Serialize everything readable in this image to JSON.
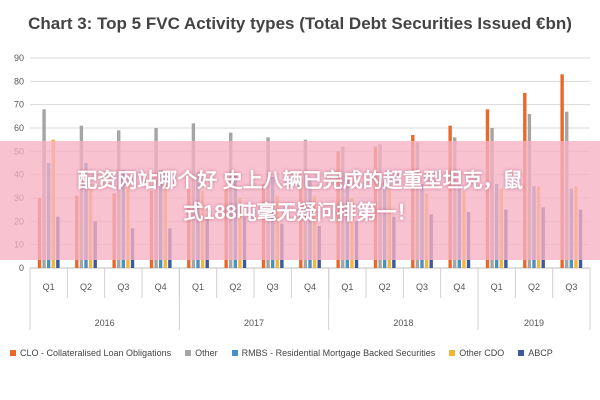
{
  "chart_data": {
    "type": "bar",
    "title": "Chart 3: Top 5 FVC Activity types (Total Debt Securities Issued €bn)",
    "xlabel": "",
    "ylabel": "",
    "ylim": [
      0,
      90
    ],
    "yticks": [
      0,
      10,
      20,
      30,
      40,
      50,
      60,
      70,
      80,
      90
    ],
    "grid": true,
    "legend_position": "bottom",
    "categories": [
      "Q1",
      "Q2",
      "Q3",
      "Q4",
      "Q1",
      "Q2",
      "Q3",
      "Q4",
      "Q1",
      "Q2",
      "Q3",
      "Q4",
      "Q1",
      "Q2",
      "Q3"
    ],
    "groups": [
      {
        "label": "2016",
        "count": 4
      },
      {
        "label": "2017",
        "count": 4
      },
      {
        "label": "2018",
        "count": 4
      },
      {
        "label": "2019",
        "count": 3
      }
    ],
    "series": [
      {
        "name": "CLO - Collateralised Loan Obligations",
        "color": "#e8692b",
        "values": [
          30,
          31,
          32,
          33,
          34,
          35,
          36,
          38,
          50,
          52,
          57,
          61,
          68,
          75,
          83
        ]
      },
      {
        "name": "Other",
        "color": "#a5a5a5",
        "values": [
          68,
          61,
          59,
          60,
          62,
          58,
          56,
          55,
          52,
          53,
          54,
          56,
          60,
          66,
          67
        ]
      },
      {
        "name": "RMBS - Residential Mortgage Backed Securities",
        "color": "#4a90c8",
        "values": [
          45,
          45,
          42,
          42,
          41,
          40,
          39,
          38,
          38,
          37,
          36,
          36,
          36,
          35,
          34
        ]
      },
      {
        "name": "Other CDO",
        "color": "#f5b633",
        "values": [
          55,
          36,
          37,
          37,
          33,
          30,
          31,
          31,
          30,
          34,
          32,
          33,
          34,
          35,
          35
        ]
      },
      {
        "name": "ABCP",
        "color": "#3d5a9e",
        "values": [
          22,
          20,
          17,
          17,
          21,
          22,
          19,
          18,
          20,
          22,
          23,
          24,
          25,
          26,
          25
        ]
      }
    ]
  },
  "overlay": {
    "line1": "配资网站哪个好 史上八辆已完成的超重型坦克，鼠",
    "line2": "式188吨毫无疑问排第一！"
  }
}
